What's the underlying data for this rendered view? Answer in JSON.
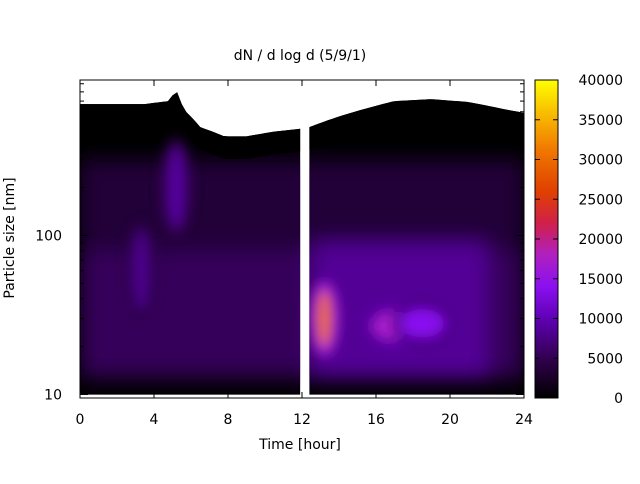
{
  "chart_data": {
    "type": "heatmap",
    "title": "dN / d log d (5/9/1)",
    "xlabel": "Time [hour]",
    "ylabel": "Particle size [nm]",
    "x_range": [
      0,
      24
    ],
    "x_ticks": [
      0,
      4,
      8,
      12,
      16,
      20,
      24
    ],
    "y_scale": "log",
    "y_range": [
      9.5,
      950
    ],
    "y_ticks": [
      10,
      100
    ],
    "colorbar": {
      "range": [
        0,
        40000
      ],
      "ticks": [
        0,
        5000,
        10000,
        15000,
        20000,
        25000,
        30000,
        35000,
        40000
      ],
      "colormap": "gnuplot pm3d default (black-purple-red-yellow)"
    },
    "data_gap_hours": [
      11.9,
      12.4
    ],
    "upper_size_limit_nm": [
      [
        0,
        670
      ],
      [
        3.5,
        670
      ],
      [
        4.8,
        700
      ],
      [
        5.2,
        820
      ],
      [
        5.6,
        620
      ],
      [
        6.5,
        480
      ],
      [
        7.8,
        420
      ],
      [
        9,
        420
      ],
      [
        10.5,
        450
      ],
      [
        12,
        470
      ],
      [
        12.4,
        480
      ],
      [
        14,
        560
      ],
      [
        15.5,
        630
      ],
      [
        17,
        700
      ],
      [
        19,
        720
      ],
      [
        21,
        690
      ],
      [
        23,
        620
      ],
      [
        24,
        590
      ]
    ],
    "features": [
      {
        "time": 13.2,
        "size_nm": 30,
        "value": 30000
      },
      {
        "time": 17.0,
        "size_nm": 27,
        "value": 17000
      },
      {
        "time": 18.5,
        "size_nm": 28,
        "value": 14000
      },
      {
        "time": 5.2,
        "size_nm": 200,
        "value": 9000
      },
      {
        "time": 3.3,
        "size_nm": 60,
        "value": 8000
      }
    ]
  }
}
